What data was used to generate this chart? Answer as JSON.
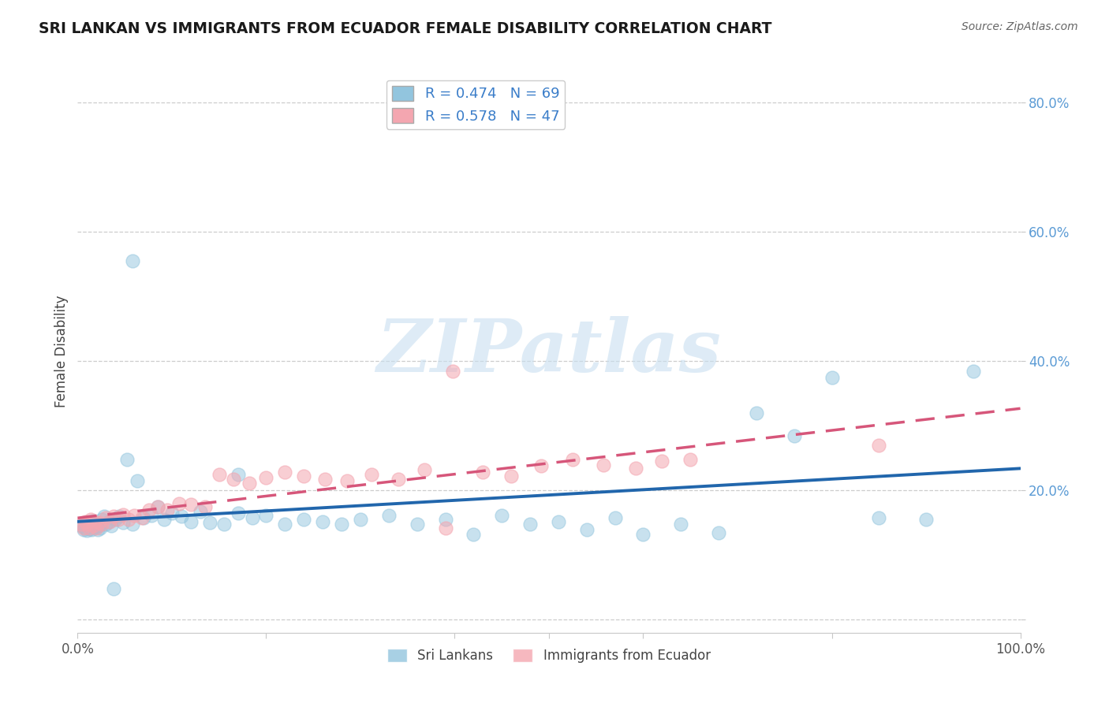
{
  "title": "SRI LANKAN VS IMMIGRANTS FROM ECUADOR FEMALE DISABILITY CORRELATION CHART",
  "source": "Source: ZipAtlas.com",
  "ylabel": "Female Disability",
  "xlim": [
    0.0,
    1.0
  ],
  "ylim": [
    -0.02,
    0.85
  ],
  "sri_lankan_R": 0.474,
  "sri_lankan_N": 69,
  "ecuador_R": 0.578,
  "ecuador_N": 47,
  "sri_lankan_color": "#92c5de",
  "ecuador_color": "#f4a6b0",
  "sri_lankan_line_color": "#2166ac",
  "ecuador_line_color": "#d6567a",
  "background_color": "#ffffff",
  "grid_color": "#c8c8c8",
  "watermark_color": "#c8dff0",
  "sl_x": [
    0.004,
    0.006,
    0.007,
    0.008,
    0.009,
    0.01,
    0.011,
    0.012,
    0.013,
    0.014,
    0.015,
    0.016,
    0.017,
    0.018,
    0.019,
    0.02,
    0.021,
    0.022,
    0.024,
    0.026,
    0.028,
    0.03,
    0.033,
    0.036,
    0.04,
    0.044,
    0.048,
    0.052,
    0.058,
    0.063,
    0.07,
    0.078,
    0.085,
    0.092,
    0.1,
    0.11,
    0.12,
    0.13,
    0.14,
    0.155,
    0.17,
    0.185,
    0.2,
    0.22,
    0.24,
    0.26,
    0.28,
    0.3,
    0.33,
    0.36,
    0.39,
    0.42,
    0.45,
    0.48,
    0.51,
    0.54,
    0.57,
    0.6,
    0.64,
    0.68,
    0.72,
    0.76,
    0.8,
    0.85,
    0.9,
    0.95,
    0.058,
    0.17,
    0.038
  ],
  "sl_y": [
    0.145,
    0.14,
    0.148,
    0.142,
    0.15,
    0.138,
    0.144,
    0.152,
    0.141,
    0.147,
    0.139,
    0.153,
    0.145,
    0.15,
    0.143,
    0.148,
    0.14,
    0.146,
    0.142,
    0.155,
    0.16,
    0.148,
    0.152,
    0.145,
    0.155,
    0.16,
    0.15,
    0.248,
    0.148,
    0.215,
    0.158,
    0.162,
    0.175,
    0.155,
    0.165,
    0.16,
    0.152,
    0.168,
    0.15,
    0.148,
    0.165,
    0.158,
    0.162,
    0.148,
    0.155,
    0.152,
    0.148,
    0.155,
    0.162,
    0.148,
    0.155,
    0.132,
    0.162,
    0.148,
    0.152,
    0.14,
    0.158,
    0.132,
    0.148,
    0.135,
    0.32,
    0.285,
    0.375,
    0.158,
    0.155,
    0.385,
    0.555,
    0.225,
    0.048
  ],
  "ec_x": [
    0.004,
    0.006,
    0.008,
    0.01,
    0.012,
    0.014,
    0.016,
    0.018,
    0.02,
    0.023,
    0.026,
    0.03,
    0.034,
    0.038,
    0.043,
    0.048,
    0.054,
    0.06,
    0.068,
    0.076,
    0.085,
    0.095,
    0.108,
    0.12,
    0.135,
    0.15,
    0.165,
    0.182,
    0.2,
    0.22,
    0.24,
    0.262,
    0.286,
    0.312,
    0.34,
    0.368,
    0.398,
    0.43,
    0.46,
    0.492,
    0.525,
    0.558,
    0.592,
    0.62,
    0.65,
    0.85,
    0.39
  ],
  "ec_y": [
    0.148,
    0.142,
    0.152,
    0.148,
    0.142,
    0.155,
    0.145,
    0.152,
    0.142,
    0.15,
    0.148,
    0.158,
    0.152,
    0.16,
    0.155,
    0.163,
    0.155,
    0.162,
    0.158,
    0.17,
    0.175,
    0.17,
    0.18,
    0.178,
    0.175,
    0.225,
    0.218,
    0.212,
    0.22,
    0.228,
    0.222,
    0.218,
    0.215,
    0.225,
    0.218,
    0.232,
    0.385,
    0.228,
    0.222,
    0.238,
    0.248,
    0.24,
    0.235,
    0.245,
    0.248,
    0.27,
    0.142
  ]
}
